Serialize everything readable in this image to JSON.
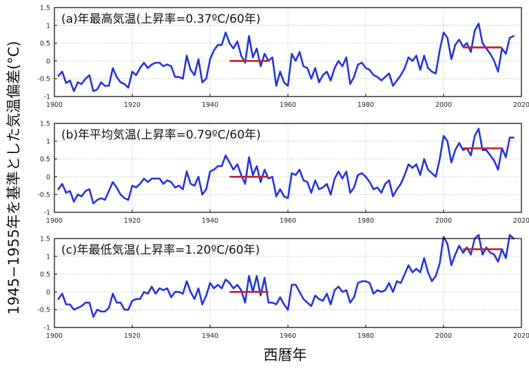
{
  "figure": {
    "ylabel": "1945−1955年を基準とした気温偏差(°C)",
    "xlabel": "西暦年",
    "colors": {
      "series": "#2233dd",
      "trend": "#c0282e",
      "frame": "#000000",
      "grid": "#9a9a9a"
    }
  },
  "chart_data": [
    {
      "type": "line",
      "title": "(a)年最高気温(上昇率=0.37ºC/60年)",
      "xlim": [
        1900,
        2020
      ],
      "ylim": [
        -1,
        1.5
      ],
      "xticks": [
        1900,
        1920,
        1940,
        1960,
        1980,
        2000,
        2020
      ],
      "yticks": [
        -1,
        -0.5,
        0,
        0.5,
        1,
        1.5
      ],
      "xtick_labels": [
        "1900",
        "1920",
        "1940",
        "1960",
        "1980",
        "2000",
        "2020"
      ],
      "ytick_labels": [
        "-1",
        "-0.5",
        "0",
        "0.5",
        "1",
        "1.5"
      ],
      "grid": "dotted",
      "x_start": 1901,
      "values": [
        -0.42,
        -0.3,
        -0.62,
        -0.55,
        -0.85,
        -0.6,
        -0.65,
        -0.5,
        -0.4,
        -0.85,
        -0.8,
        -0.6,
        -0.7,
        -0.7,
        -0.2,
        -0.45,
        -0.6,
        -0.65,
        -0.75,
        -0.3,
        -0.4,
        -0.2,
        -0.05,
        -0.2,
        -0.1,
        -0.05,
        -0.05,
        -0.15,
        -0.1,
        -0.15,
        -0.45,
        -0.45,
        -0.5,
        0.15,
        -0.25,
        -0.4,
        0.05,
        -0.6,
        -0.5,
        0.05,
        0.3,
        0.45,
        0.45,
        0.8,
        0.5,
        0.35,
        0.55,
        0.15,
        -0.05,
        0.7,
        0.1,
        0.35,
        -0.15,
        0.2,
        0.0,
        0.1,
        -0.7,
        -0.3,
        -0.6,
        -0.7,
        0.2,
        0.0,
        0.25,
        -0.15,
        -0.2,
        -0.5,
        -0.2,
        -0.6,
        -0.4,
        -0.3,
        -0.55,
        -0.2,
        0.0,
        -0.15,
        0.1,
        -0.65,
        -0.45,
        -0.1,
        -0.05,
        -0.2,
        -0.25,
        -0.4,
        -0.45,
        -0.55,
        -0.45,
        -0.35,
        -0.7,
        -0.55,
        -0.4,
        -0.2,
        0.1,
        0.0,
        0.15,
        -0.25,
        0.15,
        -0.2,
        -0.3,
        -0.35,
        0.3,
        0.8,
        0.65,
        0.05,
        0.45,
        0.6,
        0.4,
        0.5,
        0.25,
        0.85,
        1.05,
        0.5,
        0.35,
        0.2,
        0.0,
        -0.3,
        0.35,
        0.2,
        0.65,
        0.7
      ],
      "trend": {
        "from": 1945,
        "to": 1955,
        "value": 0.0
      },
      "trend_recent": {
        "from": 2005,
        "to": 2015,
        "value": 0.38
      }
    },
    {
      "type": "line",
      "title": "(b)年平均気温(上昇率=0.79ºC/60年)",
      "xlim": [
        1900,
        2020
      ],
      "ylim": [
        -1,
        1.5
      ],
      "xticks": [
        1900,
        1920,
        1940,
        1960,
        1980,
        2000,
        2020
      ],
      "yticks": [
        -1,
        -0.5,
        0,
        0.5,
        1,
        1.5
      ],
      "xtick_labels": [
        "1900",
        "1920",
        "1940",
        "1960",
        "1980",
        "2000",
        "2020"
      ],
      "ytick_labels": [
        "-1",
        "-0.5",
        "0",
        "0.5",
        "1",
        "1.5"
      ],
      "grid": "dotted",
      "x_start": 1901,
      "values": [
        -0.35,
        -0.2,
        -0.45,
        -0.4,
        -0.7,
        -0.5,
        -0.55,
        -0.4,
        -0.35,
        -0.75,
        -0.65,
        -0.6,
        -0.65,
        -0.4,
        -0.15,
        -0.3,
        -0.5,
        -0.6,
        -0.65,
        -0.25,
        -0.3,
        -0.2,
        -0.05,
        -0.15,
        -0.05,
        -0.05,
        -0.05,
        -0.2,
        -0.1,
        -0.15,
        -0.3,
        -0.25,
        -0.35,
        0.15,
        -0.2,
        -0.25,
        0.0,
        -0.5,
        -0.35,
        0.15,
        0.2,
        0.3,
        0.3,
        0.6,
        0.4,
        0.2,
        0.35,
        0.05,
        -0.2,
        0.55,
        0.05,
        0.3,
        -0.15,
        0.2,
        -0.05,
        0.0,
        -0.55,
        -0.35,
        -0.55,
        -0.6,
        0.1,
        0.05,
        0.2,
        -0.1,
        -0.15,
        -0.45,
        -0.1,
        -0.35,
        -0.3,
        -0.2,
        -0.5,
        -0.05,
        0.15,
        -0.05,
        0.15,
        -0.45,
        -0.3,
        0.05,
        0.1,
        0.0,
        -0.15,
        -0.35,
        -0.3,
        -0.45,
        -0.2,
        -0.1,
        -0.55,
        -0.35,
        -0.2,
        0.05,
        0.35,
        0.25,
        0.35,
        0.05,
        0.5,
        0.2,
        0.1,
        0.0,
        0.5,
        1.15,
        1.0,
        0.4,
        0.75,
        0.95,
        0.75,
        0.8,
        0.6,
        1.15,
        1.35,
        0.75,
        0.75,
        0.6,
        0.45,
        0.2,
        0.8,
        0.55,
        1.1,
        1.1
      ],
      "trend": {
        "from": 1945,
        "to": 1955,
        "value": 0.0
      },
      "trend_recent": {
        "from": 2005,
        "to": 2015,
        "value": 0.8
      }
    },
    {
      "type": "line",
      "title": "(c)年最低気温(上昇率=1.20ºC/60年)",
      "xlim": [
        1900,
        2020
      ],
      "ylim": [
        -1,
        1.5
      ],
      "xticks": [
        1900,
        1920,
        1940,
        1960,
        1980,
        2000,
        2020
      ],
      "yticks": [
        -1,
        -0.5,
        0,
        0.5,
        1,
        1.5
      ],
      "xtick_labels": [
        "1900",
        "1920",
        "1940",
        "1960",
        "1980",
        "2000",
        "2020"
      ],
      "ytick_labels": [
        "-1",
        "-0.5",
        "0",
        "0.5",
        "1",
        "1.5"
      ],
      "grid": "dotted",
      "x_start": 1901,
      "values": [
        -0.2,
        -0.05,
        -0.35,
        -0.35,
        -0.5,
        -0.45,
        -0.4,
        -0.3,
        -0.3,
        -0.7,
        -0.5,
        -0.55,
        -0.55,
        -0.45,
        -0.05,
        -0.3,
        -0.3,
        -0.5,
        -0.5,
        -0.25,
        -0.2,
        -0.2,
        0.0,
        -0.05,
        0.15,
        -0.05,
        0.1,
        0.05,
        0.1,
        -0.15,
        0.0,
        0.0,
        -0.05,
        0.3,
        0.0,
        -0.2,
        0.1,
        -0.35,
        -0.1,
        0.25,
        0.1,
        0.2,
        0.1,
        0.35,
        0.25,
        0.1,
        0.2,
        0.05,
        -0.3,
        0.45,
        0.0,
        0.45,
        -0.1,
        0.4,
        -0.3,
        -0.3,
        -0.35,
        -0.15,
        -0.35,
        -0.5,
        0.2,
        0.2,
        0.0,
        -0.2,
        -0.3,
        -0.4,
        -0.1,
        -0.2,
        -0.25,
        -0.05,
        -0.35,
        0.05,
        0.15,
        0.0,
        0.05,
        -0.3,
        -0.15,
        0.25,
        0.3,
        0.3,
        0.25,
        -0.05,
        0.05,
        0.0,
        0.05,
        0.25,
        0.0,
        0.3,
        0.25,
        0.5,
        0.75,
        0.55,
        0.65,
        0.55,
        0.95,
        0.55,
        0.3,
        0.45,
        0.8,
        1.55,
        1.35,
        0.75,
        1.05,
        1.3,
        1.1,
        1.25,
        1.05,
        1.5,
        1.6,
        1.05,
        1.25,
        1.1,
        1.05,
        0.85,
        1.2,
        0.95,
        1.6,
        1.5
      ],
      "trend": {
        "from": 1945,
        "to": 1955,
        "value": 0.0
      },
      "trend_recent": {
        "from": 2005,
        "to": 2015,
        "value": 1.2
      }
    }
  ]
}
